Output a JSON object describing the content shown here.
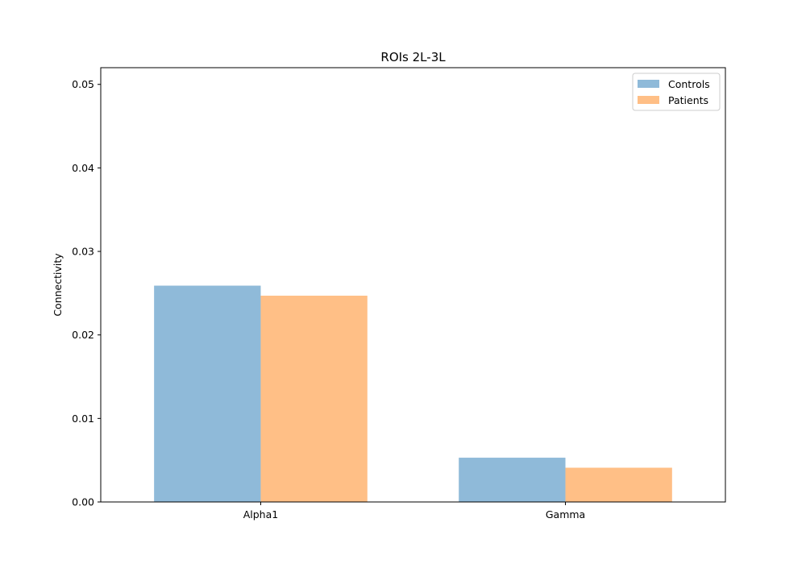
{
  "chart_data": {
    "type": "bar",
    "title": "ROIs 2L-3L",
    "xlabel": "",
    "ylabel": "Connectivity",
    "categories": [
      "Alpha1",
      "Gamma"
    ],
    "series": [
      {
        "name": "Controls",
        "values": [
          0.0259,
          0.0053
        ],
        "color": "#8fbad9"
      },
      {
        "name": "Patients",
        "values": [
          0.0247,
          0.0041
        ],
        "color": "#ffbf86"
      }
    ],
    "ylim": [
      0,
      0.052
    ],
    "yticks": [
      0.0,
      0.01,
      0.02,
      0.03,
      0.04,
      0.05
    ],
    "ytick_labels": [
      "0.00",
      "0.01",
      "0.02",
      "0.03",
      "0.04",
      "0.05"
    ],
    "grid": false,
    "legend_position": "top-right"
  }
}
